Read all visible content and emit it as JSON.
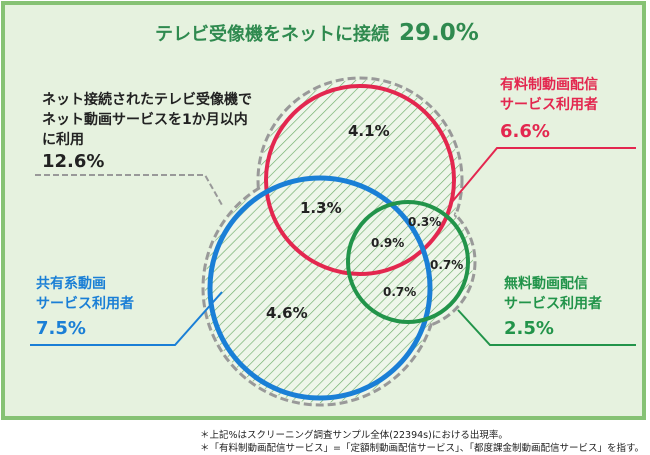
{
  "title": {
    "text": "テレビ受像機をネットに接続",
    "value": "29.0%"
  },
  "total": {
    "lines": [
      "ネット接続されたテレビ受像機で",
      "ネット動画サービスを1か月以内",
      "に利用"
    ],
    "value": "12.6%"
  },
  "sets": [
    {
      "lines": [
        "有料制動画配信",
        "サービス利用者"
      ],
      "value": "6.6%"
    },
    {
      "lines": [
        "共有系動画",
        "サービス利用者"
      ],
      "value": "7.5%"
    },
    {
      "lines": [
        "無料動画配信",
        "サービス利用者"
      ],
      "value": "2.5%"
    }
  ],
  "regions": [
    "4.1%",
    "1.3%",
    "0.3%",
    "0.9%",
    "0.7%",
    "0.7%",
    "4.6%"
  ],
  "footnotes": [
    "＊上記%はスクリーニング調査サンプル全体(22394s)における出現率。",
    "＊「有料制動画配信サービス」=「定額制動画配信サービス」、「都度課金制動画配信サービス」を指す。"
  ]
}
